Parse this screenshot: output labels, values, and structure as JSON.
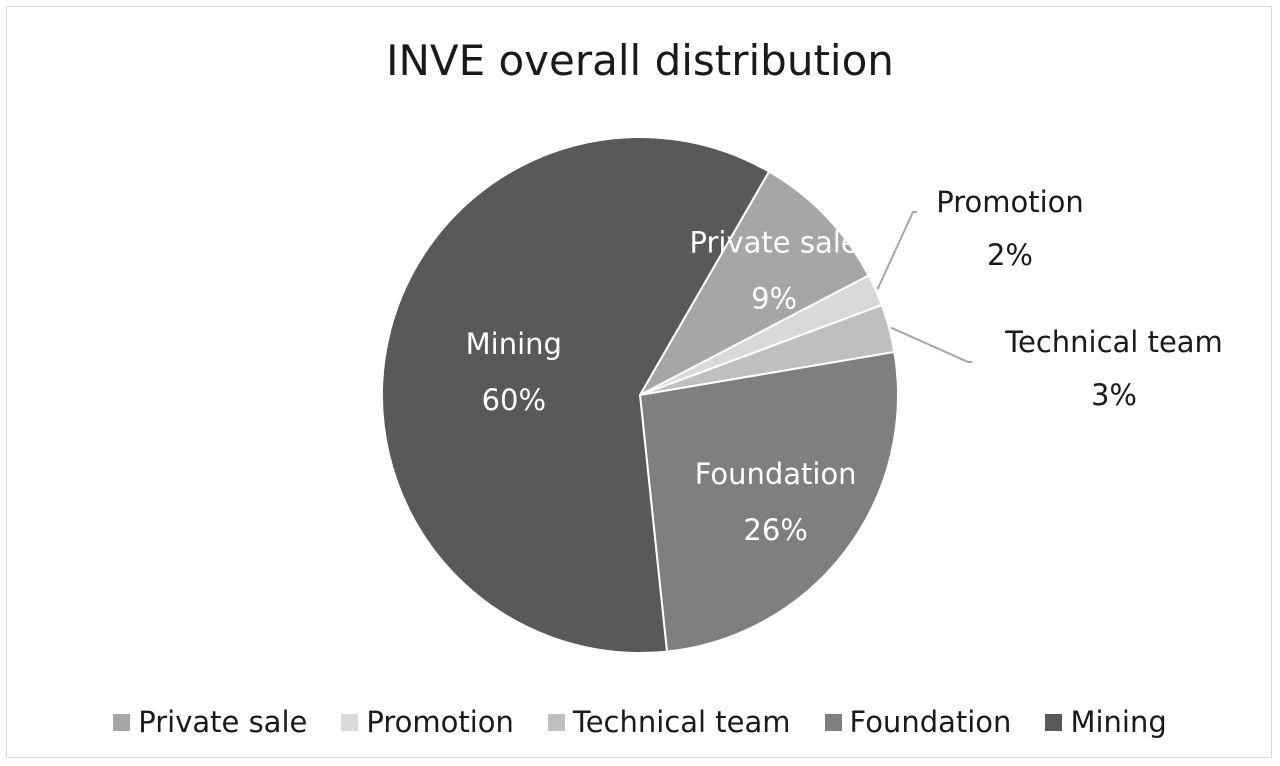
{
  "chart_data": {
    "type": "pie",
    "title": "INVE overall distribution",
    "slices": [
      {
        "name": "Private sale",
        "value": 9,
        "label": "9%",
        "color": "#a6a6a6",
        "label_inside": true,
        "label_color": "#ffffff"
      },
      {
        "name": "Promotion",
        "value": 2,
        "label": "2%",
        "color": "#d9d9d9",
        "label_inside": false,
        "label_color": "#1a1a1a"
      },
      {
        "name": "Technical team",
        "value": 3,
        "label": "3%",
        "color": "#bfbfbf",
        "label_inside": false,
        "label_color": "#1a1a1a"
      },
      {
        "name": "Foundation",
        "value": 26,
        "label": "26%",
        "color": "#7f7f7f",
        "label_inside": true,
        "label_color": "#ffffff"
      },
      {
        "name": "Mining",
        "value": 60,
        "label": "60%",
        "color": "#595959",
        "label_inside": true,
        "label_color": "#ffffff"
      }
    ],
    "legend_position": "bottom",
    "leader_line_color": "#a6a6a6"
  }
}
